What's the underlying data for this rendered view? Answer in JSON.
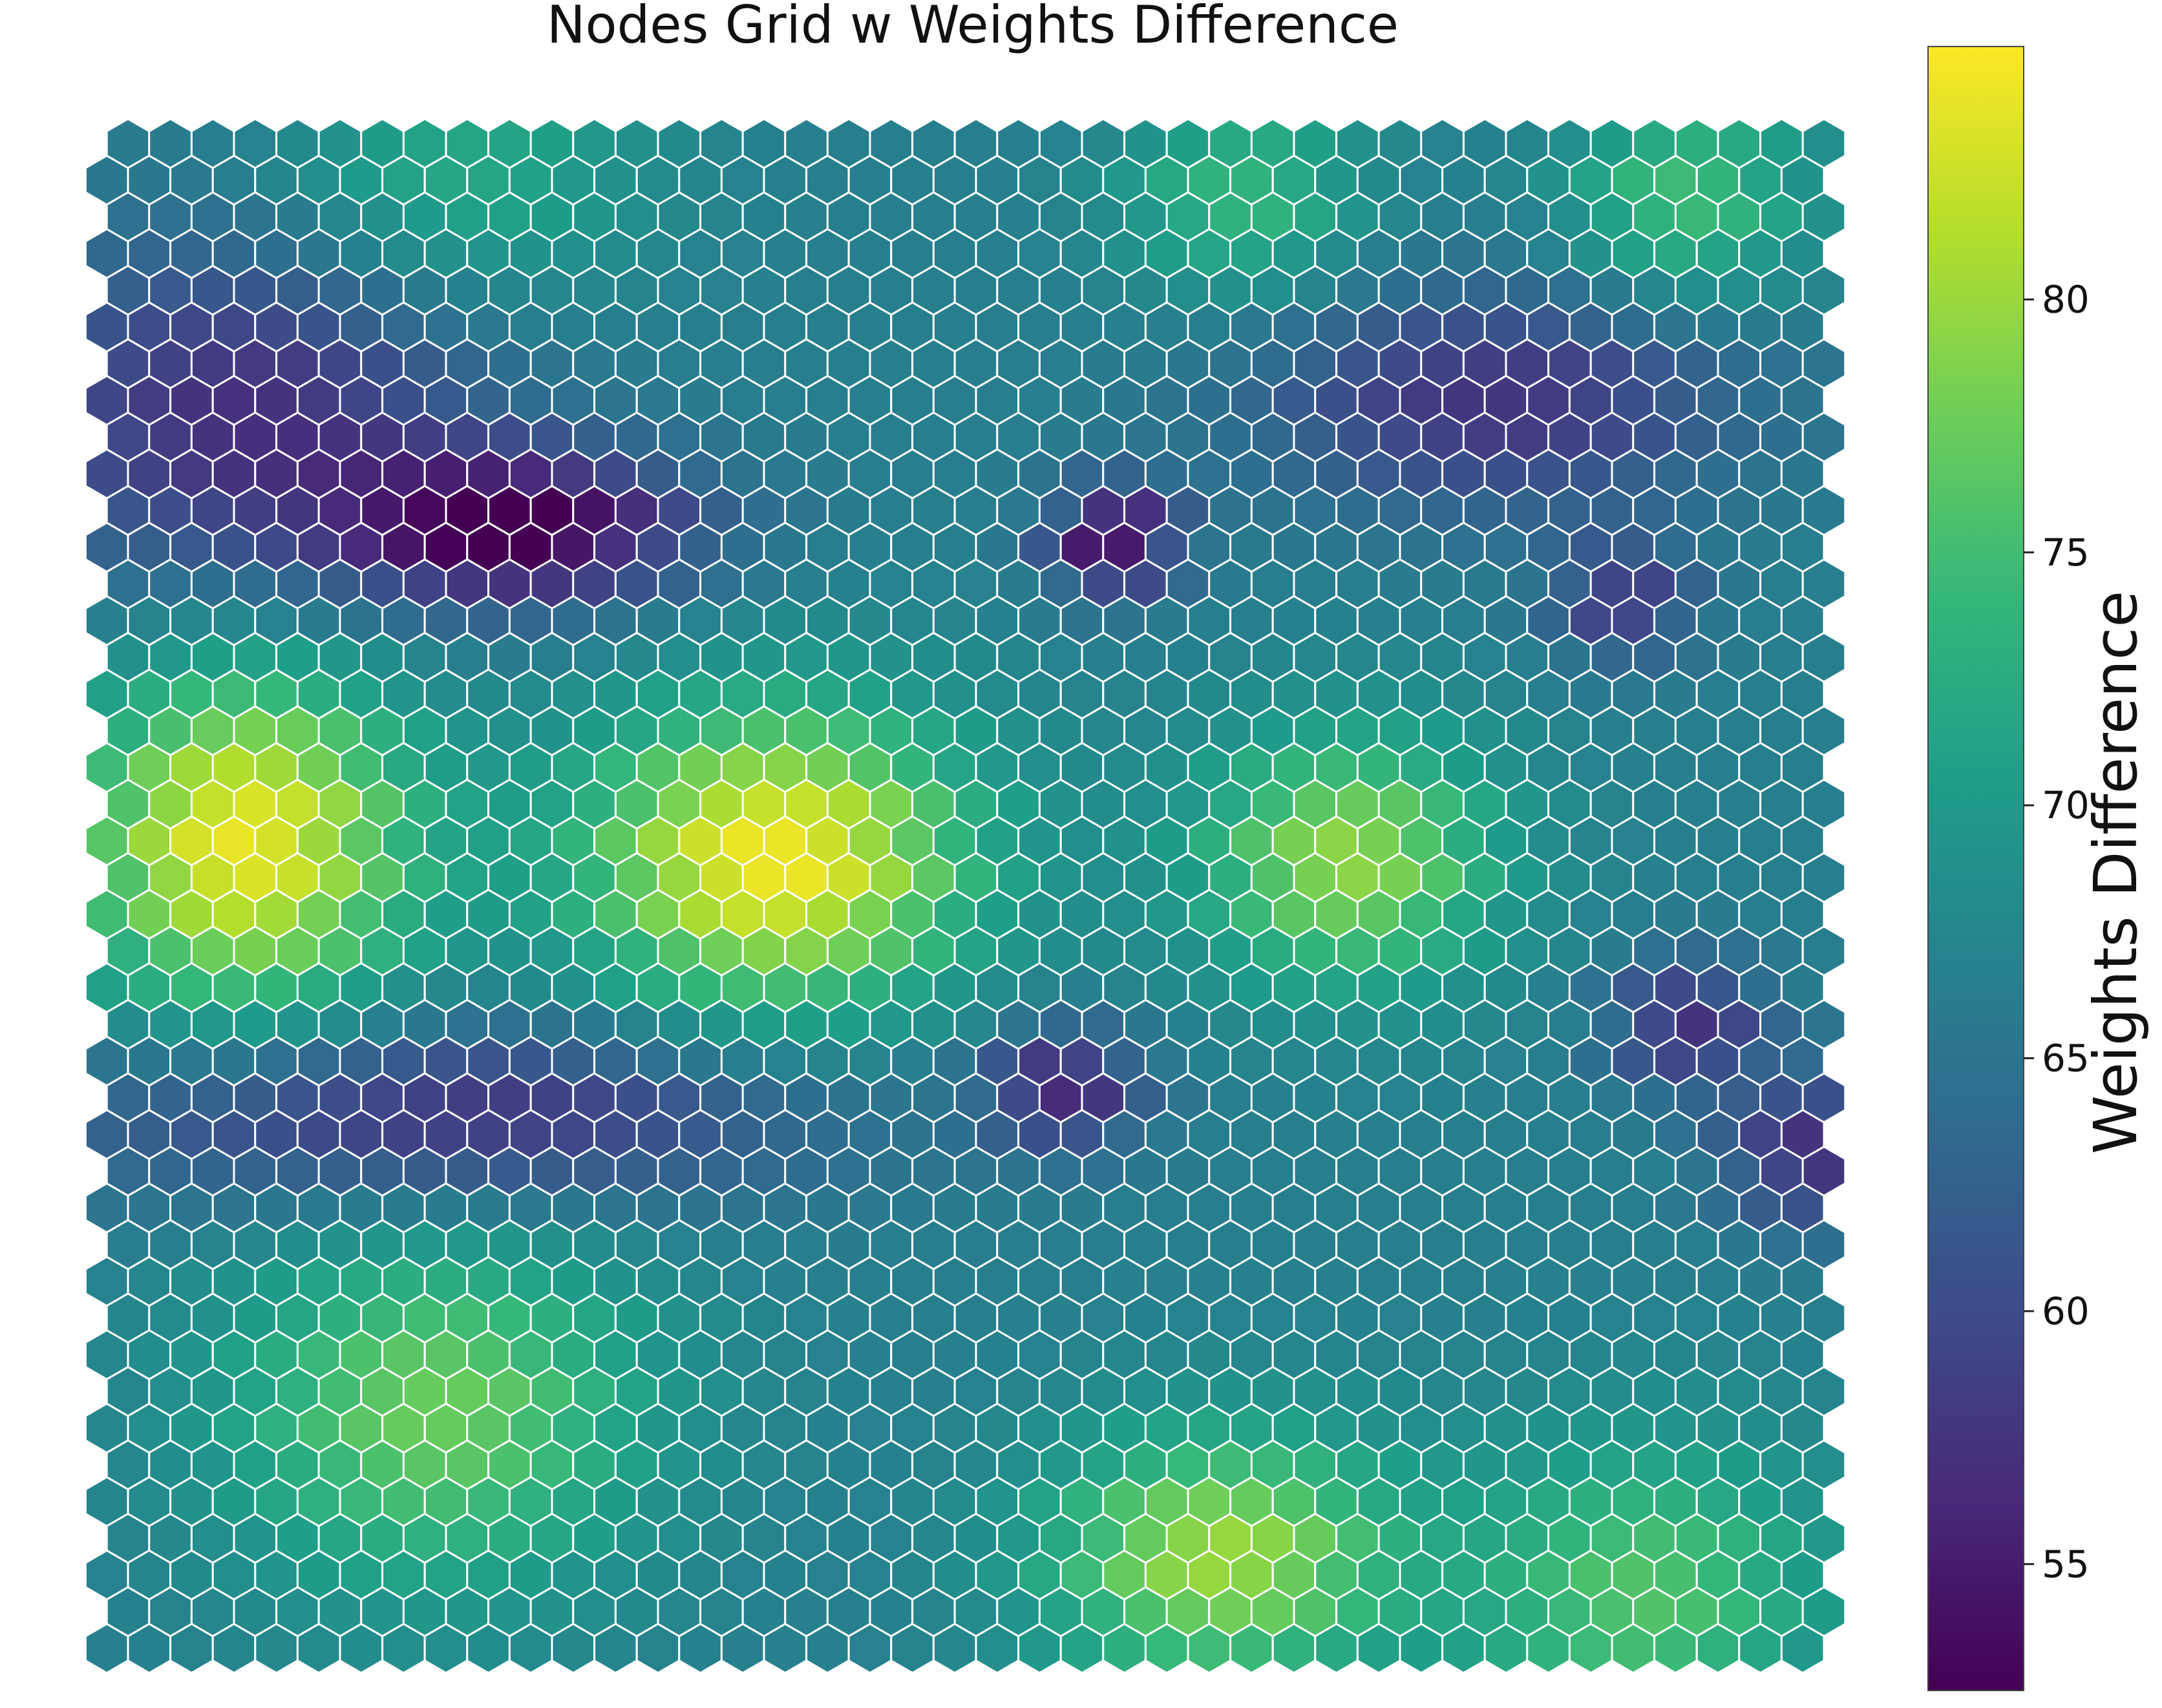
{
  "chart_data": {
    "type": "heatmap",
    "subtype": "hexagonal-grid",
    "title": "Nodes Grid w Weights Difference",
    "xlabel": "",
    "ylabel": "",
    "grid": "off",
    "cell_edge_color": "#ffffff",
    "grid_columns": 41,
    "grid_rows": 42,
    "row_offset": "odd rows shifted half a cell to the right",
    "value_range": [
      52.5,
      85.0
    ],
    "colormap": "viridis",
    "colormap_stops": [
      "#440154",
      "#482878",
      "#3e4989",
      "#31688e",
      "#26828e",
      "#1f9e89",
      "#35b779",
      "#6ece58",
      "#b5de2b",
      "#fde725"
    ],
    "colorbar": {
      "label": "Weights Difference",
      "ticks": [
        55,
        60,
        65,
        70,
        75,
        80
      ],
      "tick_labels": [
        "55",
        "60",
        "65",
        "70",
        "75",
        "80"
      ],
      "placement": "right"
    },
    "values_note": "Cell values estimated by reading the colour of each hexagon against the colorbar; regions listed as value anchors for the field.",
    "base_value": 66.5,
    "regions": [
      {
        "name": "upper-left minimum",
        "col": 9.5,
        "row": 10.5,
        "value": 52.8,
        "spread_cols": 3.0,
        "spread_rows": 1.5
      },
      {
        "name": "upper-left low ridge",
        "col": 3.0,
        "row": 7.5,
        "value": 57.0,
        "spread_cols": 4.0,
        "spread_rows": 3.5
      },
      {
        "name": "central minimum",
        "col": 23.5,
        "row": 10.8,
        "value": 53.5,
        "spread_cols": 1.1,
        "spread_rows": 1.1
      },
      {
        "name": "upper-right low",
        "col": 32.5,
        "row": 7.0,
        "value": 57.5,
        "spread_cols": 4.0,
        "spread_rows": 2.2
      },
      {
        "name": "right low spot",
        "col": 35.5,
        "row": 12.5,
        "value": 58.5,
        "spread_cols": 1.2,
        "spread_rows": 1.2
      },
      {
        "name": "left maximum",
        "col": 3.0,
        "row": 19.0,
        "value": 84.0,
        "spread_cols": 2.8,
        "spread_rows": 3.5
      },
      {
        "name": "center-left maximum",
        "col": 15.5,
        "row": 19.5,
        "value": 84.5,
        "spread_cols": 3.3,
        "spread_rows": 3.0
      },
      {
        "name": "center-right high",
        "col": 29.0,
        "row": 19.5,
        "value": 79.5,
        "spread_cols": 2.5,
        "spread_rows": 2.5
      },
      {
        "name": "lower-left low band",
        "col": 7.5,
        "row": 26.5,
        "value": 57.0,
        "spread_cols": 6.5,
        "spread_rows": 1.8
      },
      {
        "name": "lower-center low spot",
        "col": 22.3,
        "row": 25.7,
        "value": 56.5,
        "spread_cols": 1.3,
        "spread_rows": 1.2
      },
      {
        "name": "right low spot lower",
        "col": 37.0,
        "row": 24.0,
        "value": 57.5,
        "spread_cols": 1.3,
        "spread_rows": 1.3
      },
      {
        "name": "right edge low",
        "col": 40.0,
        "row": 27.5,
        "value": 57.0,
        "spread_cols": 1.5,
        "spread_rows": 1.5
      },
      {
        "name": "lower-left high",
        "col": 7.5,
        "row": 34.5,
        "value": 77.5,
        "spread_cols": 3.5,
        "spread_rows": 3.5
      },
      {
        "name": "bottom-center high",
        "col": 26.0,
        "row": 38.5,
        "value": 80.0,
        "spread_cols": 3.0,
        "spread_rows": 2.5
      },
      {
        "name": "bottom-right high",
        "col": 36.0,
        "row": 39.5,
        "value": 76.0,
        "spread_cols": 3.0,
        "spread_rows": 3.0
      },
      {
        "name": "top-right high",
        "col": 37.0,
        "row": 1.5,
        "value": 75.0,
        "spread_cols": 2.0,
        "spread_rows": 2.0
      },
      {
        "name": "top-middle high",
        "col": 26.5,
        "row": 1.5,
        "value": 74.0,
        "spread_cols": 2.0,
        "spread_rows": 2.0
      },
      {
        "name": "top-left mid",
        "col": 8.0,
        "row": 1.0,
        "value": 72.5,
        "spread_cols": 3.0,
        "spread_rows": 2.5
      }
    ]
  }
}
